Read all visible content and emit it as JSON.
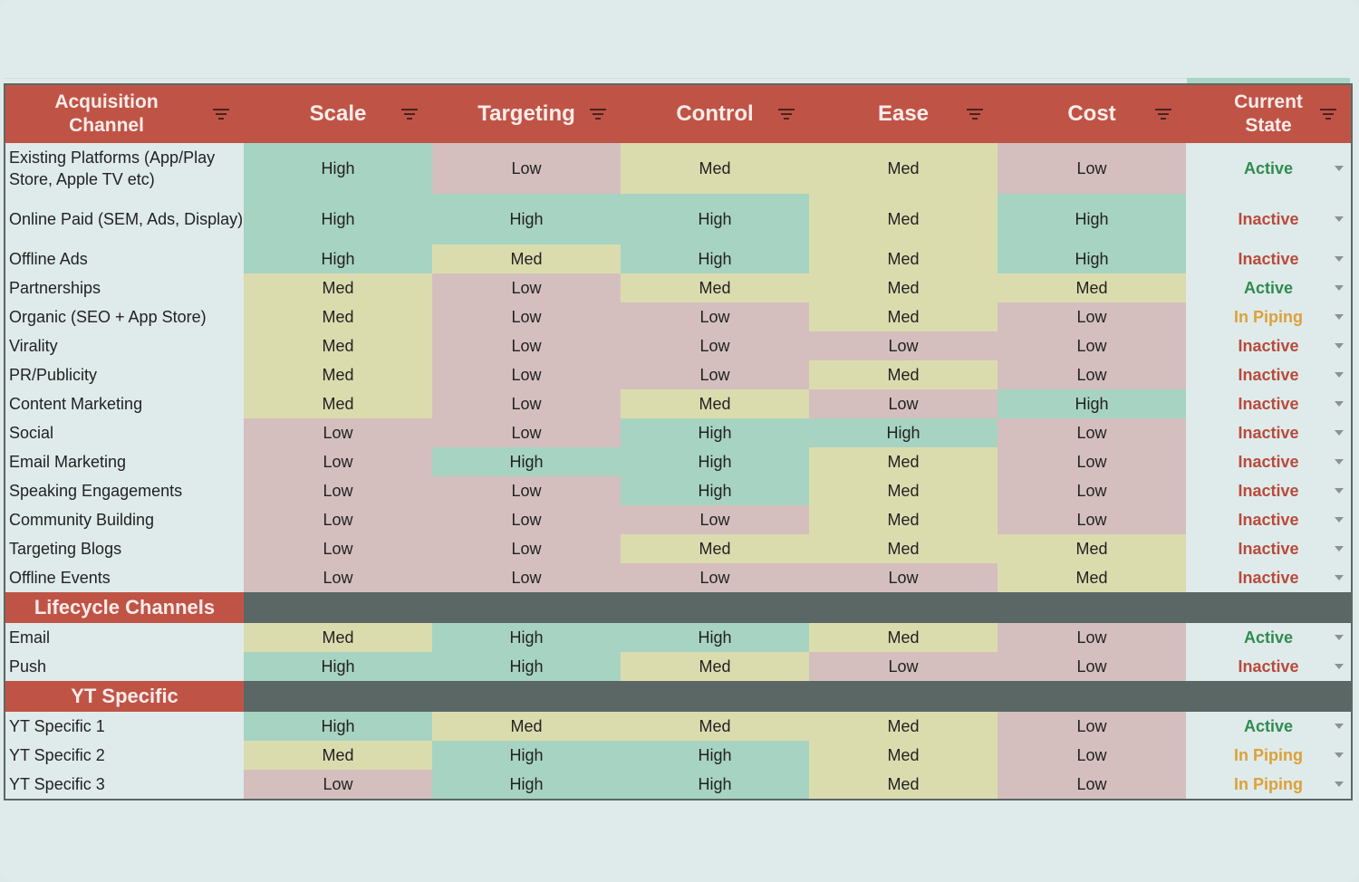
{
  "header": {
    "columns": [
      "Acquisition Channel",
      "Scale",
      "Targeting",
      "Control",
      "Ease",
      "Cost",
      "Current State"
    ]
  },
  "acquisition_rows": [
    {
      "name": "Existing Platforms (App/Play Store, Apple TV etc)",
      "scale": "High",
      "targeting": "Low",
      "control": "Med",
      "ease": "Med",
      "cost": "Low",
      "state": "Active"
    },
    {
      "name": "Online Paid (SEM, Ads, Display)",
      "scale": "High",
      "targeting": "High",
      "control": "High",
      "ease": "Med",
      "cost": "High",
      "state": "Inactive"
    },
    {
      "name": "Offline Ads",
      "scale": "High",
      "targeting": "Med",
      "control": "High",
      "ease": "Med",
      "cost": "High",
      "state": "Inactive"
    },
    {
      "name": "Partnerships",
      "scale": "Med",
      "targeting": "Low",
      "control": "Med",
      "ease": "Med",
      "cost": "Med",
      "state": "Active"
    },
    {
      "name": "Organic (SEO + App Store)",
      "scale": "Med",
      "targeting": "Low",
      "control": "Low",
      "ease": "Med",
      "cost": "Low",
      "state": "In Piping"
    },
    {
      "name": "Virality",
      "scale": "Med",
      "targeting": "Low",
      "control": "Low",
      "ease": "Low",
      "cost": "Low",
      "state": "Inactive"
    },
    {
      "name": "PR/Publicity",
      "scale": "Med",
      "targeting": "Low",
      "control": "Low",
      "ease": "Med",
      "cost": "Low",
      "state": "Inactive"
    },
    {
      "name": "Content Marketing",
      "scale": "Med",
      "targeting": "Low",
      "control": "Med",
      "ease": "Low",
      "cost": "High",
      "state": "Inactive"
    },
    {
      "name": "Social",
      "scale": "Low",
      "targeting": "Low",
      "control": "High",
      "ease": "High",
      "cost": "Low",
      "state": "Inactive"
    },
    {
      "name": "Email Marketing",
      "scale": "Low",
      "targeting": "High",
      "control": "High",
      "ease": "Med",
      "cost": "Low",
      "state": "Inactive"
    },
    {
      "name": "Speaking Engagements",
      "scale": "Low",
      "targeting": "Low",
      "control": "High",
      "ease": "Med",
      "cost": "Low",
      "state": "Inactive"
    },
    {
      "name": "Community Building",
      "scale": "Low",
      "targeting": "Low",
      "control": "Low",
      "ease": "Med",
      "cost": "Low",
      "state": "Inactive"
    },
    {
      "name": "Targeting Blogs",
      "scale": "Low",
      "targeting": "Low",
      "control": "Med",
      "ease": "Med",
      "cost": "Med",
      "state": "Inactive"
    },
    {
      "name": "Offline Events",
      "scale": "Low",
      "targeting": "Low",
      "control": "Low",
      "ease": "Low",
      "cost": "Med",
      "state": "Inactive"
    }
  ],
  "sections": [
    {
      "title": "Lifecycle Channels",
      "rows": [
        {
          "name": "Email",
          "scale": "Med",
          "targeting": "High",
          "control": "High",
          "ease": "Med",
          "cost": "Low",
          "state": "Active"
        },
        {
          "name": "Push",
          "scale": "High",
          "targeting": "High",
          "control": "Med",
          "ease": "Low",
          "cost": "Low",
          "state": "Inactive"
        }
      ]
    },
    {
      "title": "YT Specific",
      "rows": [
        {
          "name": "YT Specific 1",
          "scale": "High",
          "targeting": "Med",
          "control": "Med",
          "ease": "Med",
          "cost": "Low",
          "state": "Active"
        },
        {
          "name": "YT Specific 2",
          "scale": "Med",
          "targeting": "High",
          "control": "High",
          "ease": "Med",
          "cost": "Low",
          "state": "In Piping"
        },
        {
          "name": "YT Specific 3",
          "scale": "Low",
          "targeting": "High",
          "control": "High",
          "ease": "Med",
          "cost": "Low",
          "state": "In Piping"
        }
      ]
    }
  ],
  "colors": {
    "header_bg": "#bf5446",
    "section_fill": "#5a6765",
    "high": "#a7d3c2",
    "med": "#dbdcae",
    "low": "#d4bfbe",
    "active": "#2f8b4f",
    "inactive": "#b84a3c",
    "in_piping": "#dca13a"
  }
}
